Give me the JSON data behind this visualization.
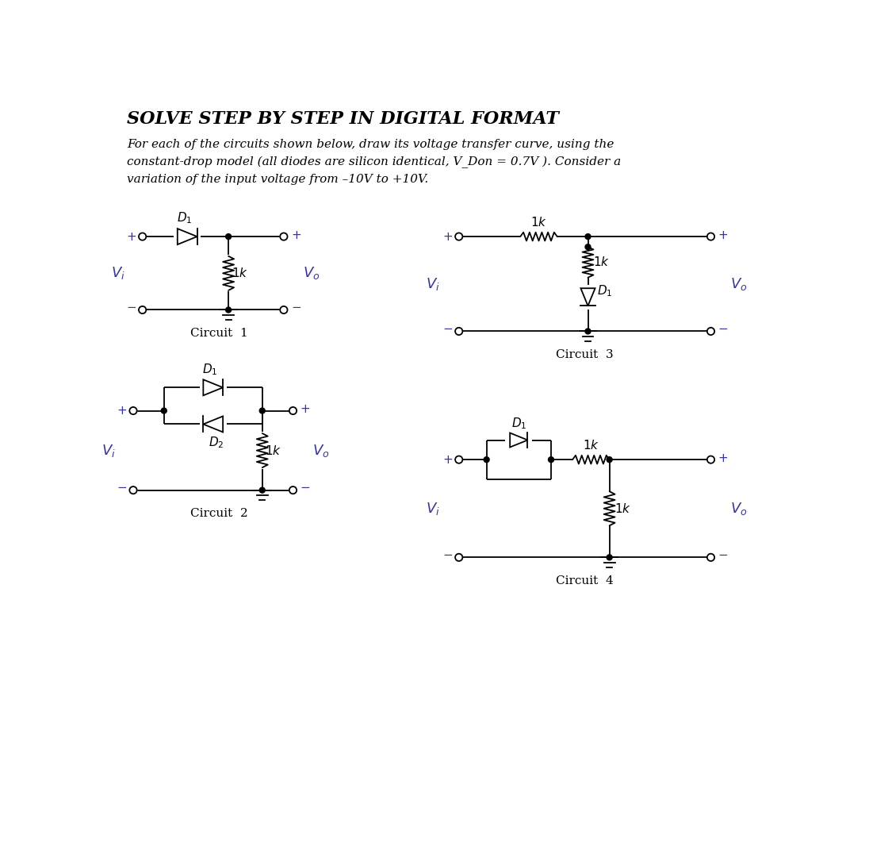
{
  "title": "SOLVE STEP BY STEP IN DIGITAL FORMAT",
  "subtitle_line1": "For each of the circuits shown below, draw its voltage transfer curve, using the",
  "subtitle_line2": "constant-drop model (all diodes are silicon identical, V_Don = 0.7V ). Consider a",
  "subtitle_line3": "variation of the input voltage from –10V to +10V.",
  "line_color": "#000000",
  "blue_color": "#3333AA",
  "bg_color": "#ffffff",
  "circuit1_label": "Circuit  1",
  "circuit2_label": "Circuit  2",
  "circuit3_label": "Circuit  3",
  "circuit4_label": "Circuit  4"
}
